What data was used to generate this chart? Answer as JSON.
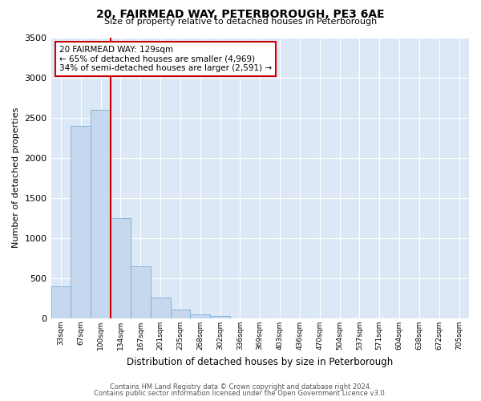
{
  "title": "20, FAIRMEAD WAY, PETERBOROUGH, PE3 6AE",
  "subtitle": "Size of property relative to detached houses in Peterborough",
  "xlabel": "Distribution of detached houses by size in Peterborough",
  "ylabel": "Number of detached properties",
  "bar_color": "#c5d8ee",
  "bar_edge_color": "#7aafd4",
  "figure_bg": "#ffffff",
  "plot_bg": "#dce8f5",
  "grid_color": "#ffffff",
  "annotation_box_edgecolor": "#cc0000",
  "vline_color": "#cc0000",
  "vline_x": 3.0,
  "annotation_line1": "20 FAIRMEAD WAY: 129sqm",
  "annotation_line2": "← 65% of detached houses are smaller (4,969)",
  "annotation_line3": "34% of semi-detached houses are larger (2,591) →",
  "categories": [
    "33sqm",
    "67sqm",
    "100sqm",
    "134sqm",
    "167sqm",
    "201sqm",
    "235sqm",
    "268sqm",
    "302sqm",
    "336sqm",
    "369sqm",
    "403sqm",
    "436sqm",
    "470sqm",
    "504sqm",
    "537sqm",
    "571sqm",
    "604sqm",
    "638sqm",
    "672sqm",
    "705sqm"
  ],
  "values": [
    400,
    2400,
    2600,
    1250,
    650,
    260,
    105,
    55,
    30,
    0,
    0,
    0,
    0,
    0,
    0,
    0,
    0,
    0,
    0,
    0,
    0
  ],
  "ylim": [
    0,
    3500
  ],
  "yticks": [
    0,
    500,
    1000,
    1500,
    2000,
    2500,
    3000,
    3500
  ],
  "footer_line1": "Contains HM Land Registry data © Crown copyright and database right 2024.",
  "footer_line2": "Contains public sector information licensed under the Open Government Licence v3.0."
}
